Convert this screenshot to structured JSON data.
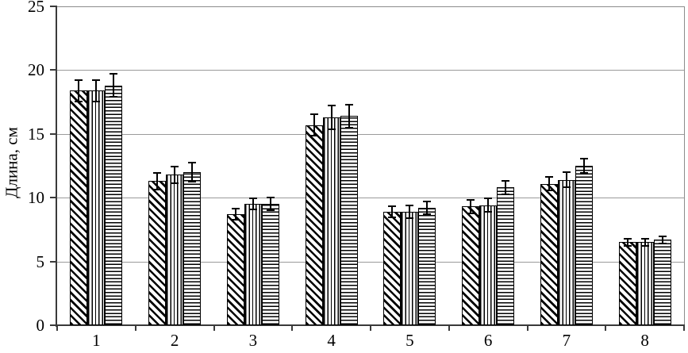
{
  "chart_data": {
    "type": "bar",
    "title": "",
    "xlabel": "",
    "ylabel": "Длина, см",
    "categories": [
      "1",
      "2",
      "3",
      "4",
      "5",
      "6",
      "7",
      "8"
    ],
    "series": [
      {
        "name": "series-1-diagonal-hatch",
        "pattern": "diagonal",
        "values": [
          18.4,
          11.3,
          8.7,
          15.7,
          8.9,
          9.3,
          11.1,
          6.5
        ],
        "errors": [
          0.9,
          0.7,
          0.5,
          0.9,
          0.5,
          0.6,
          0.6,
          0.35
        ]
      },
      {
        "name": "series-2-vertical-hatch",
        "pattern": "vertical",
        "values": [
          18.4,
          11.8,
          9.5,
          16.3,
          8.9,
          9.4,
          11.4,
          6.5
        ],
        "errors": [
          0.9,
          0.7,
          0.5,
          1.0,
          0.55,
          0.6,
          0.65,
          0.35
        ]
      },
      {
        "name": "series-3-horizontal-hatch",
        "pattern": "horizontal",
        "values": [
          18.8,
          12.0,
          9.5,
          16.4,
          9.2,
          10.8,
          12.5,
          6.7
        ],
        "errors": [
          0.95,
          0.8,
          0.55,
          0.95,
          0.55,
          0.6,
          0.6,
          0.35
        ]
      }
    ],
    "ylim": [
      0,
      25
    ],
    "yticks": [
      0,
      5,
      10,
      15,
      20,
      25
    ],
    "grid": true,
    "legend": false,
    "error_bars": true,
    "colors": {
      "bar_fill": "#ffffff",
      "hatch": "#000000",
      "gridline": "#9a9a9a",
      "frame": "#8c8c8c",
      "axis": "#3a3a3a",
      "text": "#000000",
      "background": "#ffffff"
    }
  }
}
